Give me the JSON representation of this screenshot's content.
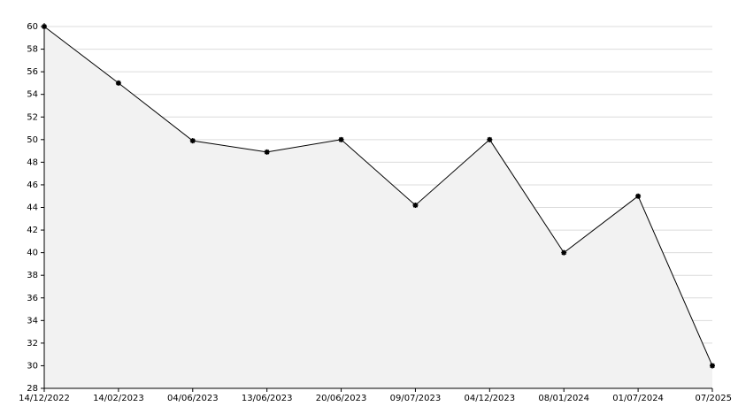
{
  "chart_data": {
    "type": "area",
    "categories": [
      "14/12/2022",
      "14/02/2023",
      "04/06/2023",
      "13/06/2023",
      "20/06/2023",
      "09/07/2023",
      "04/12/2023",
      "08/01/2024",
      "01/07/2024",
      "07/2025"
    ],
    "values": [
      60,
      55,
      49.9,
      48.9,
      50,
      44.2,
      50,
      40,
      45,
      30
    ],
    "color": "#000000",
    "fill": "#f2f2f2",
    "ylim": [
      28,
      60
    ],
    "yticks": [
      28,
      30,
      32,
      34,
      36,
      38,
      40,
      42,
      44,
      46,
      48,
      50,
      52,
      54,
      56,
      58,
      60
    ],
    "grid": true
  }
}
